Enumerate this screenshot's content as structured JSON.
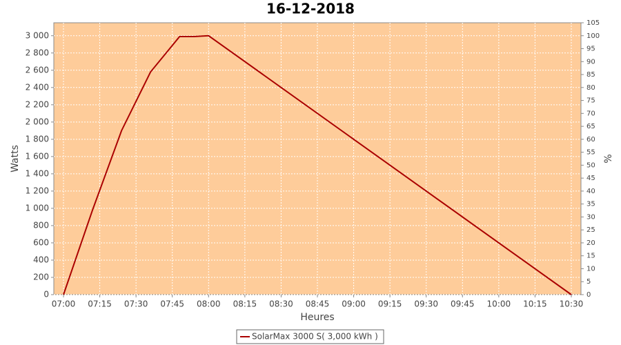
{
  "chart_data": {
    "type": "line",
    "title": "16-12-2018",
    "x_label": "Heures",
    "y_label": "Watts",
    "y2_label": "%",
    "x": [
      "07:00",
      "07:12",
      "07:24",
      "07:36",
      "07:48",
      "07:54",
      "08:00",
      "10:30"
    ],
    "series": [
      {
        "name": "SolarMax 3000 S( 3,000 kWh )",
        "color": "#aa0000",
        "values": [
          0,
          980,
          1900,
          2580,
          2990,
          2990,
          3000,
          0
        ]
      }
    ],
    "xlim": [
      "06:56",
      "10:34"
    ],
    "xticks": [
      "07:00",
      "07:15",
      "07:30",
      "07:45",
      "08:00",
      "08:15",
      "08:30",
      "08:45",
      "09:00",
      "09:15",
      "09:30",
      "09:45",
      "10:00",
      "10:15",
      "10:30"
    ],
    "ylim": [
      0,
      3150
    ],
    "yticks": [
      0,
      200,
      400,
      600,
      800,
      {
        "value": 1000,
        "label": "1 000"
      },
      {
        "value": 1200,
        "label": "1 200"
      },
      {
        "value": 1400,
        "label": "1 400"
      },
      {
        "value": 1600,
        "label": "1 600"
      },
      {
        "value": 1800,
        "label": "1 800"
      },
      {
        "value": 2000,
        "label": "2 000"
      },
      {
        "value": 2200,
        "label": "2 200"
      },
      {
        "value": 2400,
        "label": "2 400"
      },
      {
        "value": 2600,
        "label": "2 600"
      },
      {
        "value": 2800,
        "label": "2 800"
      },
      {
        "value": 3000,
        "label": "3 000"
      }
    ],
    "y2lim": [
      0,
      105
    ],
    "y2ticks": [
      0,
      5,
      10,
      15,
      20,
      25,
      30,
      35,
      40,
      45,
      50,
      55,
      60,
      65,
      70,
      75,
      80,
      85,
      90,
      95,
      100,
      105
    ],
    "grid": true,
    "plot_background": "#fecc9a"
  }
}
